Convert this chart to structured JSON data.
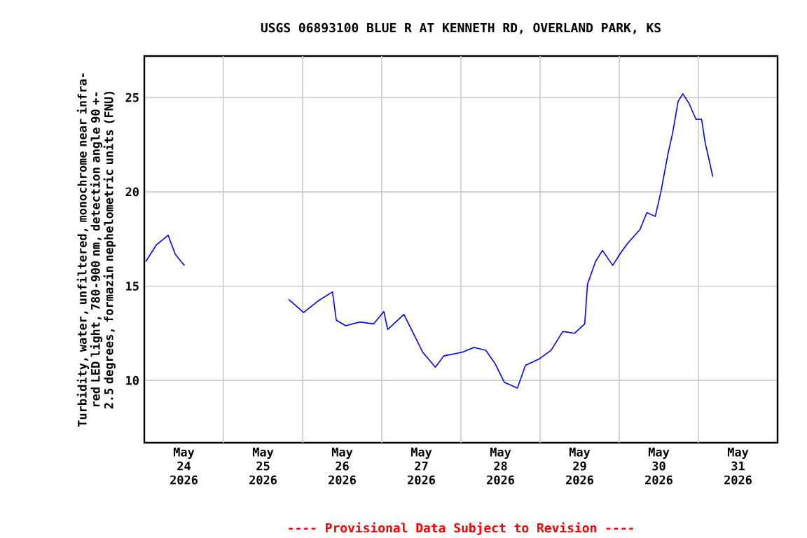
{
  "chart_data": {
    "type": "line",
    "title": "USGS 06893100 BLUE R AT KENNETH RD, OVERLAND PARK, KS",
    "ylabel": "Turbidity, water, unfiltered, monochrome near infra-red LED light, 780-900 nm, detection angle 90 +-2.5 degrees, formazin nephelometric units (FNU)",
    "x": [
      "2026-05-24T00:25",
      "2026-05-24T03:42",
      "2026-05-24T07:13",
      "2026-05-24T09:21",
      "2026-05-24T11:10",
      "2026-05-24T12:11",
      "2026-05-25T06:00",
      "2026-05-25T19:45",
      "2026-05-26T00:18",
      "2026-05-26T04:33",
      "2026-05-26T09:03",
      "2026-05-26T10:12",
      "2026-05-26T13:02",
      "2026-05-26T17:18",
      "2026-05-26T21:32",
      "2026-05-27T00:38",
      "2026-05-27T01:47",
      "2026-05-27T06:42",
      "2026-05-27T09:34",
      "2026-05-27T12:24",
      "2026-05-27T16:14",
      "2026-05-27T18:47",
      "2026-05-28T00:26",
      "2026-05-28T03:57",
      "2026-05-28T07:31",
      "2026-05-28T10:20",
      "2026-05-28T13:10",
      "2026-05-28T17:07",
      "2026-05-28T19:33",
      "2026-05-28T23:48",
      "2026-05-29T03:19",
      "2026-05-29T06:53",
      "2026-05-29T10:25",
      "2026-05-29T13:31",
      "2026-05-29T14:22",
      "2026-05-29T16:47",
      "2026-05-29T18:54",
      "2026-05-29T22:00",
      "2026-05-30T00:34",
      "2026-05-30T02:41",
      "2026-05-30T06:15",
      "2026-05-30T08:22",
      "2026-05-30T10:55",
      "2026-05-30T12:37",
      "2026-05-30T14:45",
      "2026-05-30T16:09",
      "2026-05-30T17:51",
      "2026-05-30T19:15",
      "2026-05-30T21:07",
      "2026-05-30T23:15",
      "2026-05-31T00:57",
      "2026-05-31T02:03",
      "2026-05-31T03:29",
      "2026-05-31T04:20"
    ],
    "series": [
      {
        "color": "#0000ff",
        "values": [
          16.3,
          17.2,
          17.7,
          16.7,
          16.3,
          16.1,
          null,
          14.3,
          13.6,
          14.2,
          14.7,
          13.2,
          12.9,
          13.1,
          13.0,
          13.65,
          12.7,
          13.5,
          12.5,
          11.5,
          10.7,
          11.3,
          11.5,
          11.75,
          11.6,
          10.9,
          9.9,
          9.6,
          10.8,
          11.15,
          11.6,
          12.6,
          12.5,
          13.0,
          15.1,
          16.3,
          16.9,
          16.1,
          16.8,
          17.3,
          18.0,
          18.9,
          18.7,
          20.0,
          22.0,
          23.1,
          24.8,
          25.2,
          24.7,
          23.85,
          23.85,
          22.6,
          21.5,
          20.8
        ]
      }
    ],
    "xlim": [
      "2026-05-24T00:00",
      "2026-06-01T00:00"
    ],
    "xticks": [
      {
        "value": "2026-05-24T12:00",
        "label": "May 24 2026"
      },
      {
        "value": "2026-05-25T12:00",
        "label": "May 25 2026"
      },
      {
        "value": "2026-05-26T12:00",
        "label": "May 26 2026"
      },
      {
        "value": "2026-05-27T12:00",
        "label": "May 27 2026"
      },
      {
        "value": "2026-05-28T12:00",
        "label": "May 28 2026"
      },
      {
        "value": "2026-05-29T12:00",
        "label": "May 29 2026"
      },
      {
        "value": "2026-05-30T12:00",
        "label": "May 30 2026"
      },
      {
        "value": "2026-05-31T12:00",
        "label": "May 31 2026"
      },
      {
        "value": "2026-05-25T00:00",
        "label": null
      },
      {
        "value": "2026-05-26T00:00",
        "label": null
      },
      {
        "value": "2026-05-27T00:00",
        "label": null
      },
      {
        "value": "2026-05-28T00:00",
        "label": null
      },
      {
        "value": "2026-05-29T00:00",
        "label": null
      },
      {
        "value": "2026-05-30T00:00",
        "label": null
      },
      {
        "value": "2026-05-31T00:00",
        "label": null
      }
    ],
    "ylim": [
      6.7,
      27.2
    ],
    "yticks": [
      10,
      15,
      20,
      25
    ],
    "grid": true,
    "line_style": "solid",
    "annotations": [
      "---- Provisional Data Subject to Revision ----"
    ]
  }
}
